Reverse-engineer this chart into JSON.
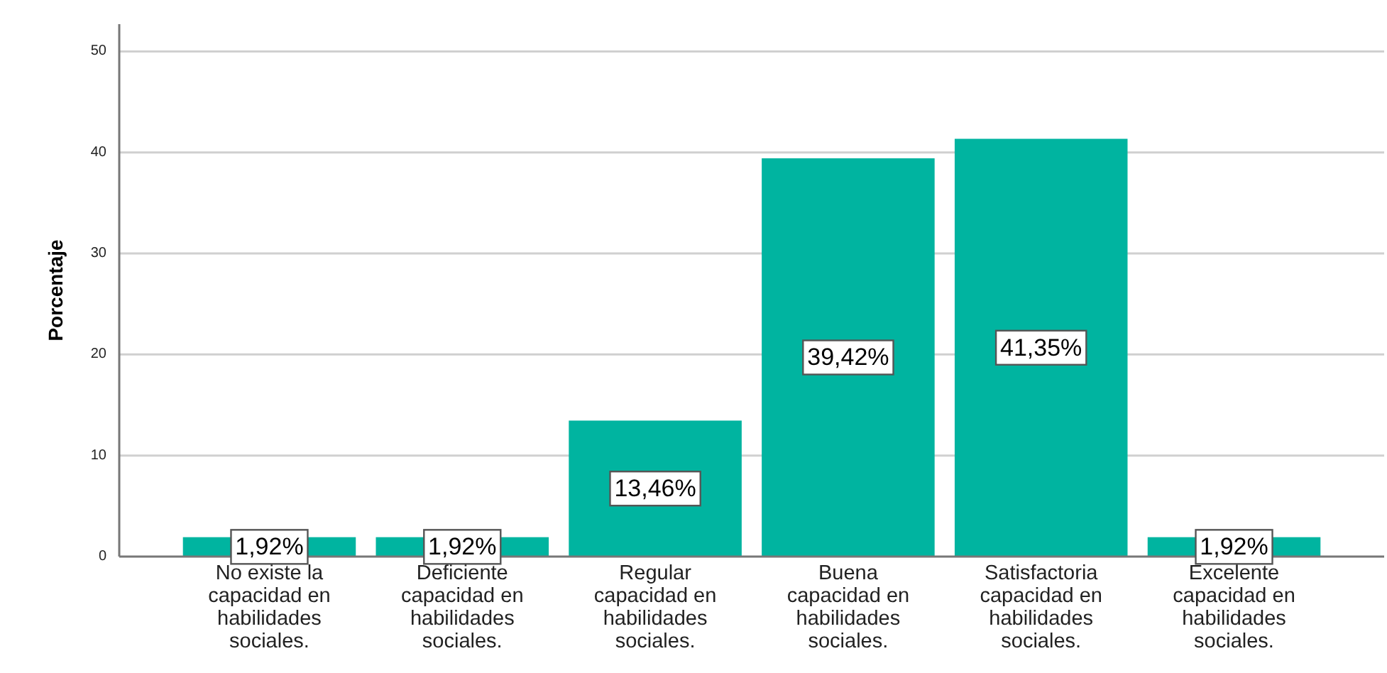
{
  "chart_data": {
    "type": "bar",
    "ylabel": "Porcentaje",
    "categories": [
      "No existe la\ncapacidad en\nhabilidades\nsociales.",
      "Deficiente\ncapacidad en\nhabilidades\nsociales.",
      "Regular\ncapacidad en\nhabilidades\nsociales.",
      "Buena\ncapacidad en\nhabilidades\nsociales.",
      "Satisfactoria\ncapacidad en\nhabilidades\nsociales.",
      "Excelente\ncapacidad en\nhabilidades\nsociales."
    ],
    "values": [
      1.92,
      1.92,
      13.46,
      39.42,
      41.35,
      1.92
    ],
    "value_labels": [
      "1,92%",
      "1,92%",
      "13,46%",
      "39,42%",
      "41,35%",
      "1,92%"
    ],
    "color": "#00b4a0",
    "ylim": [
      0,
      52.7
    ],
    "yticks": [
      0,
      10,
      20,
      30,
      40,
      50
    ],
    "grid": "y"
  }
}
